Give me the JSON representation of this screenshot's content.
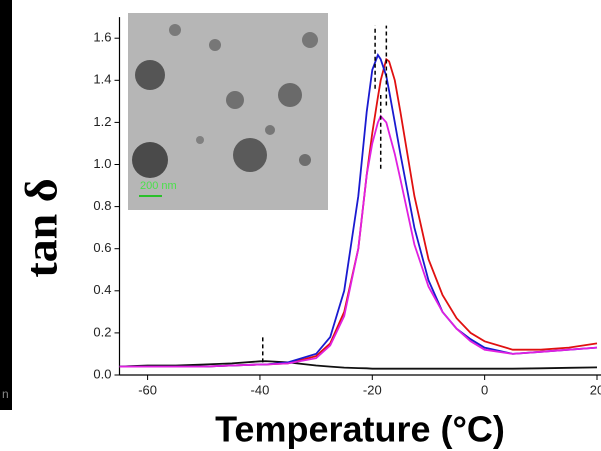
{
  "chart_data": {
    "type": "line",
    "y_label": "tan δ",
    "x_label": "Temperature (°C)",
    "inset_scale": "200 nm",
    "side_text": "n",
    "x": [
      -65,
      -60,
      -55,
      -50,
      -45,
      -40,
      -39,
      -35,
      -30,
      -27.5,
      -25,
      -22.5,
      -21,
      -20,
      -19,
      -18.5,
      -17.5,
      -17,
      -16,
      -15,
      -12.5,
      -10,
      -7.5,
      -5,
      -2.5,
      0,
      5,
      10,
      15,
      20
    ],
    "series": [
      {
        "color": "#111111",
        "values": [
          0.04,
          0.045,
          0.045,
          0.05,
          0.055,
          0.065,
          0.066,
          0.06,
          0.045,
          0.04,
          0.035,
          0.033,
          0.032,
          0.03,
          0.03,
          0.03,
          0.03,
          0.03,
          0.03,
          0.03,
          0.03,
          0.03,
          0.03,
          0.03,
          0.03,
          0.03,
          0.03,
          0.032,
          0.034,
          0.036
        ]
      },
      {
        "color": "#e01010",
        "values": [
          0.04,
          0.04,
          0.04,
          0.04,
          0.045,
          0.05,
          0.05,
          0.055,
          0.09,
          0.15,
          0.3,
          0.6,
          0.95,
          1.15,
          1.32,
          1.4,
          1.5,
          1.49,
          1.4,
          1.25,
          0.85,
          0.55,
          0.38,
          0.27,
          0.2,
          0.16,
          0.12,
          0.12,
          0.13,
          0.15
        ]
      },
      {
        "color": "#1a1ad0",
        "values": [
          0.04,
          0.04,
          0.04,
          0.04,
          0.045,
          0.05,
          0.05,
          0.06,
          0.1,
          0.18,
          0.4,
          0.85,
          1.25,
          1.45,
          1.52,
          1.5,
          1.42,
          1.35,
          1.2,
          1.05,
          0.7,
          0.45,
          0.3,
          0.22,
          0.17,
          0.13,
          0.1,
          0.11,
          0.12,
          0.13
        ]
      },
      {
        "color": "#e020e0",
        "values": [
          0.04,
          0.04,
          0.04,
          0.04,
          0.045,
          0.05,
          0.05,
          0.055,
          0.08,
          0.14,
          0.28,
          0.6,
          0.95,
          1.1,
          1.2,
          1.23,
          1.2,
          1.15,
          1.05,
          0.93,
          0.62,
          0.42,
          0.3,
          0.22,
          0.16,
          0.12,
          0.1,
          0.11,
          0.12,
          0.13
        ]
      }
    ],
    "peak_markers": [
      -39.5,
      -19.5,
      -17.5,
      -18.5
    ],
    "xlim": [
      -65,
      20
    ],
    "ylim": [
      0,
      1.7
    ],
    "xticks": [
      -60,
      -40,
      -20,
      0,
      20
    ],
    "yticks": [
      {
        "value": 0,
        "label": "0.0"
      },
      0.2,
      0.4,
      0.6,
      0.8,
      {
        "value": 1,
        "label": "1.0"
      },
      1.2,
      1.4,
      1.6
    ]
  }
}
